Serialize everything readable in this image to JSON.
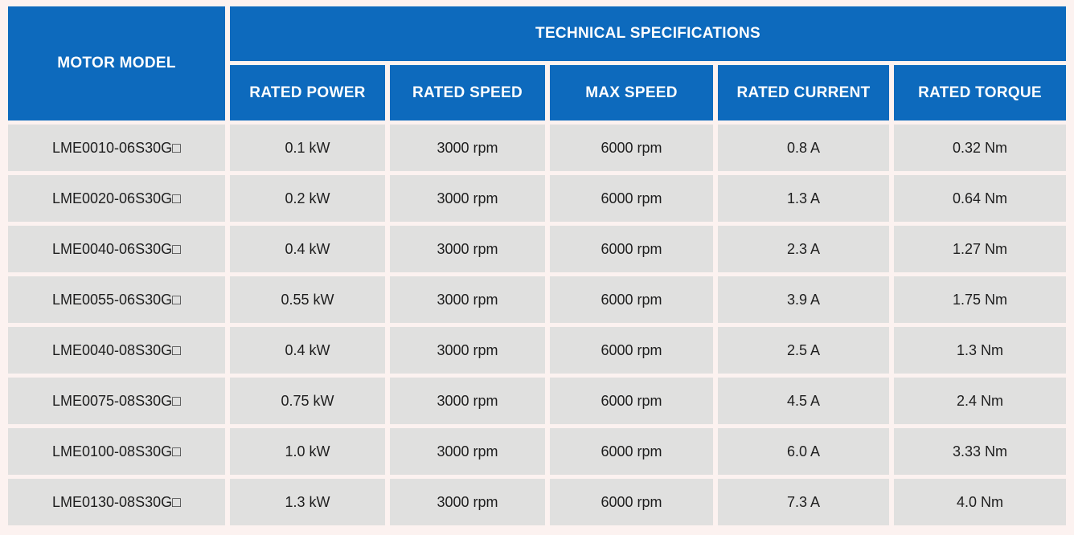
{
  "colors": {
    "header_blue": "#0d6abd",
    "cell_gray": "#e0e0df",
    "gap_color": "#fcf2f0",
    "body_text": "#1e1e1e",
    "header_text": "#ffffff"
  },
  "table": {
    "header": {
      "motor_model": "MOTOR MODEL",
      "tech_specs": "TECHNICAL SPECIFICATIONS",
      "columns": [
        "RATED POWER",
        "RATED SPEED",
        "MAX SPEED",
        "RATED CURRENT",
        "RATED TORQUE"
      ]
    },
    "rows": [
      {
        "model": "LME0010-06S30G□",
        "power": "0.1 kW",
        "speed": "3000 rpm",
        "max_speed": "6000 rpm",
        "current": "0.8 A",
        "torque": "0.32 Nm"
      },
      {
        "model": "LME0020-06S30G□",
        "power": "0.2 kW",
        "speed": "3000 rpm",
        "max_speed": "6000 rpm",
        "current": "1.3 A",
        "torque": "0.64 Nm"
      },
      {
        "model": "LME0040-06S30G□",
        "power": "0.4 kW",
        "speed": "3000 rpm",
        "max_speed": "6000 rpm",
        "current": "2.3 A",
        "torque": "1.27 Nm"
      },
      {
        "model": "LME0055-06S30G□",
        "power": "0.55 kW",
        "speed": "3000 rpm",
        "max_speed": "6000 rpm",
        "current": "3.9 A",
        "torque": "1.75 Nm"
      },
      {
        "model": "LME0040-08S30G□",
        "power": "0.4 kW",
        "speed": "3000 rpm",
        "max_speed": "6000 rpm",
        "current": "2.5 A",
        "torque": "1.3 Nm"
      },
      {
        "model": "LME0075-08S30G□",
        "power": "0.75 kW",
        "speed": "3000 rpm",
        "max_speed": "6000 rpm",
        "current": "4.5 A",
        "torque": "2.4 Nm"
      },
      {
        "model": "LME0100-08S30G□",
        "power": "1.0 kW",
        "speed": "3000 rpm",
        "max_speed": "6000 rpm",
        "current": "6.0 A",
        "torque": "3.33 Nm"
      },
      {
        "model": "LME0130-08S30G□",
        "power": "1.3 kW",
        "speed": "3000 rpm",
        "max_speed": "6000 rpm",
        "current": "7.3 A",
        "torque": "4.0 Nm"
      }
    ]
  }
}
